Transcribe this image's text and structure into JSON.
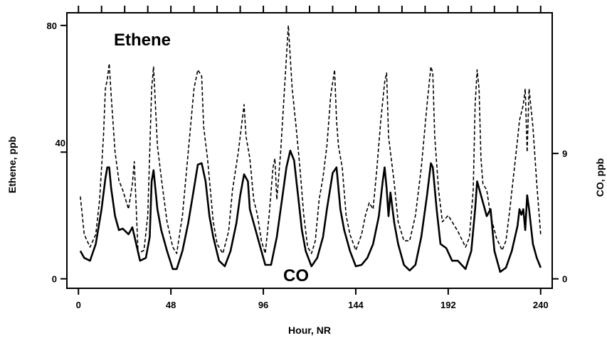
{
  "chart_data": {
    "type": "line",
    "title": "",
    "xlabel": "Hour, NR",
    "ylabel_left": "Ethene, ppb",
    "ylabel_right": "CO, ppb",
    "xlim": [
      -6,
      246
    ],
    "ylim_left": [
      -3,
      84
    ],
    "ylim_right": [
      -0.68,
      19.1
    ],
    "x_ticks": [
      0,
      48,
      96,
      144,
      192,
      240
    ],
    "x_top_ticks": [
      0,
      12,
      24,
      36,
      48,
      60,
      72,
      84,
      96,
      108,
      120,
      132,
      144,
      156,
      168,
      180,
      192,
      204,
      216,
      228,
      240
    ],
    "y_left_ticks": [
      0,
      40,
      80
    ],
    "y_right_ticks": [
      0,
      9
    ],
    "grid": false,
    "annotations": [
      {
        "text": "Ethene",
        "x": 16,
        "y": 75
      },
      {
        "text": "CO",
        "x": 104,
        "y": 0
      }
    ],
    "series": [
      {
        "name": "Ethene",
        "axis": "left",
        "style": "dashed",
        "x": [
          1,
          3,
          6,
          9,
          11,
          13,
          14,
          15,
          16,
          17,
          19,
          21,
          23,
          26,
          28,
          29,
          31,
          34,
          36,
          38,
          39,
          41,
          43,
          46,
          49,
          51,
          54,
          57,
          60,
          62,
          64,
          65,
          67,
          70,
          72,
          75,
          78,
          80,
          83,
          85,
          86,
          87,
          89,
          91,
          93,
          95,
          97,
          99,
          101,
          102,
          103,
          105,
          107,
          108,
          109,
          110,
          111,
          113,
          115,
          117,
          119,
          121,
          123,
          125,
          127,
          129,
          131,
          133,
          134,
          135,
          137,
          139,
          141,
          144,
          147,
          149,
          151,
          153,
          155,
          157,
          159,
          160,
          161,
          162,
          164,
          166,
          169,
          172,
          175,
          178,
          181,
          183,
          184,
          185,
          187,
          189,
          192,
          194,
          197,
          201,
          203,
          205,
          206,
          207,
          208,
          209,
          210,
          212,
          214,
          217,
          220,
          222,
          224,
          226,
          228,
          229,
          231,
          232,
          233,
          234,
          236,
          238,
          240
        ],
        "y": [
          26,
          14,
          10,
          14,
          25,
          45,
          60,
          63,
          68,
          58,
          40,
          31,
          28,
          22,
          30,
          37,
          8,
          9,
          20,
          60,
          67,
          42,
          32,
          18,
          10,
          8,
          20,
          40,
          60,
          66,
          64,
          48,
          38,
          18,
          11,
          8,
          15,
          28,
          40,
          50,
          55,
          45,
          38,
          25,
          20,
          12,
          8,
          20,
          35,
          38,
          25,
          40,
          60,
          70,
          80,
          70,
          60,
          48,
          35,
          20,
          10,
          8,
          12,
          25,
          32,
          42,
          58,
          66,
          50,
          42,
          35,
          20,
          14,
          9,
          14,
          20,
          24,
          22,
          35,
          50,
          62,
          65,
          45,
          40,
          30,
          18,
          12,
          12,
          20,
          35,
          55,
          67,
          65,
          45,
          28,
          18,
          20,
          18,
          15,
          10,
          13,
          28,
          55,
          66,
          60,
          38,
          30,
          28,
          20,
          13,
          9,
          12,
          22,
          33,
          44,
          50,
          55,
          60,
          40,
          60,
          48,
          30,
          14
        ]
      },
      {
        "name": "CO",
        "axis": "right",
        "style": "solid",
        "x": [
          1,
          3,
          6,
          9,
          12,
          14,
          15,
          16,
          17,
          19,
          21,
          23,
          26,
          28,
          30,
          32,
          35,
          37,
          38,
          39,
          41,
          43,
          46,
          49,
          51,
          54,
          57,
          60,
          62,
          64,
          66,
          68,
          70,
          73,
          76,
          79,
          82,
          84,
          86,
          88,
          89,
          91,
          93,
          95,
          97,
          100,
          103,
          106,
          108,
          110,
          112,
          114,
          116,
          118,
          121,
          124,
          127,
          129,
          132,
          134,
          136,
          138,
          141,
          144,
          147,
          150,
          153,
          156,
          158,
          159,
          160,
          161,
          162,
          164,
          166,
          169,
          172,
          175,
          178,
          181,
          183,
          184,
          186,
          188,
          191,
          194,
          197,
          201,
          204,
          206,
          207,
          208,
          210,
          212,
          214,
          216,
          219,
          222,
          225,
          228,
          229,
          230,
          231,
          232,
          233,
          234,
          236,
          238,
          240
        ],
        "y": [
          2.0,
          1.5,
          1.3,
          2.5,
          5.0,
          7.2,
          8.0,
          8.0,
          6.5,
          4.5,
          3.5,
          3.6,
          3.2,
          3.7,
          2.5,
          1.3,
          1.5,
          3.0,
          7.0,
          7.8,
          5.0,
          3.5,
          2.0,
          0.7,
          0.7,
          2.0,
          4.0,
          6.5,
          8.2,
          8.3,
          7.0,
          4.5,
          3.0,
          1.3,
          0.9,
          2.0,
          4.0,
          6.0,
          7.5,
          7.0,
          5.0,
          4.0,
          3.0,
          2.0,
          1.0,
          1.0,
          3.0,
          6.0,
          8.0,
          9.2,
          8.5,
          6.0,
          3.5,
          2.0,
          0.9,
          1.5,
          3.0,
          5.0,
          7.6,
          8.0,
          5.0,
          3.5,
          2.0,
          0.9,
          1.0,
          1.5,
          2.5,
          4.5,
          7.0,
          8.0,
          6.5,
          4.5,
          6.2,
          4.0,
          2.5,
          1.0,
          0.6,
          1.0,
          3.0,
          6.0,
          8.3,
          8.0,
          5.0,
          2.5,
          2.2,
          1.3,
          1.3,
          0.7,
          2.0,
          5.0,
          7.0,
          6.5,
          5.5,
          4.5,
          5.0,
          2.0,
          0.5,
          0.8,
          2.0,
          3.8,
          5.0,
          4.6,
          5.0,
          3.5,
          6.0,
          5.0,
          2.5,
          1.5,
          0.8
        ]
      }
    ]
  }
}
